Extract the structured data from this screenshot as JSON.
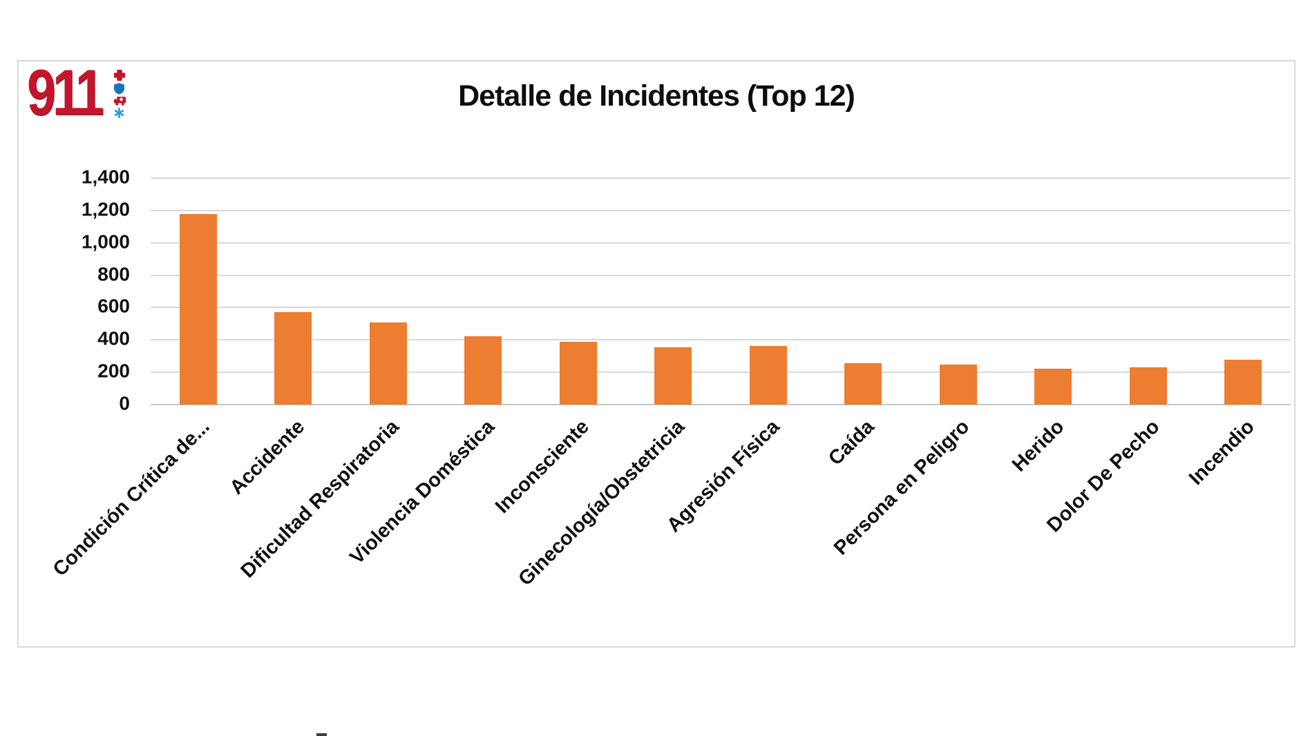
{
  "logo": {
    "text": "911",
    "text_color": "#c3152b",
    "icon_colors": {
      "medical_cross": "#c41425",
      "shield": "#1b75bb",
      "ambulance": "#c41425",
      "star_of_life": "#2a9fd8"
    }
  },
  "title": "Detalle de Incidentes (Top 12)",
  "chart_data": {
    "type": "bar",
    "title": "Detalle de Incidentes (Top 12)",
    "categories": [
      "Condición Crítica de...",
      "Accidente",
      "Dificultad Respiratoria",
      "Violencia Doméstica",
      "Inconsciente",
      "Ginecología/Obstetricia",
      "Agresión Física",
      "Caída",
      "Persona en Peligro",
      "Herido",
      "Dolor De Pecho",
      "Incendio"
    ],
    "values": [
      1180,
      572,
      510,
      421,
      389,
      355,
      362,
      255,
      249,
      224,
      231,
      276
    ],
    "xlabel": "",
    "ylabel": "",
    "ylim": [
      0,
      1400
    ],
    "ytick_step": 200,
    "ytick_labels": [
      "0",
      "200",
      "400",
      "600",
      "800",
      "1,000",
      "1,200",
      "1,400"
    ],
    "bar_color": "#ed7d31",
    "grid": true,
    "gridline_color": "#d9d9d9",
    "legend": "none",
    "x_label_rotation_deg": 45
  }
}
